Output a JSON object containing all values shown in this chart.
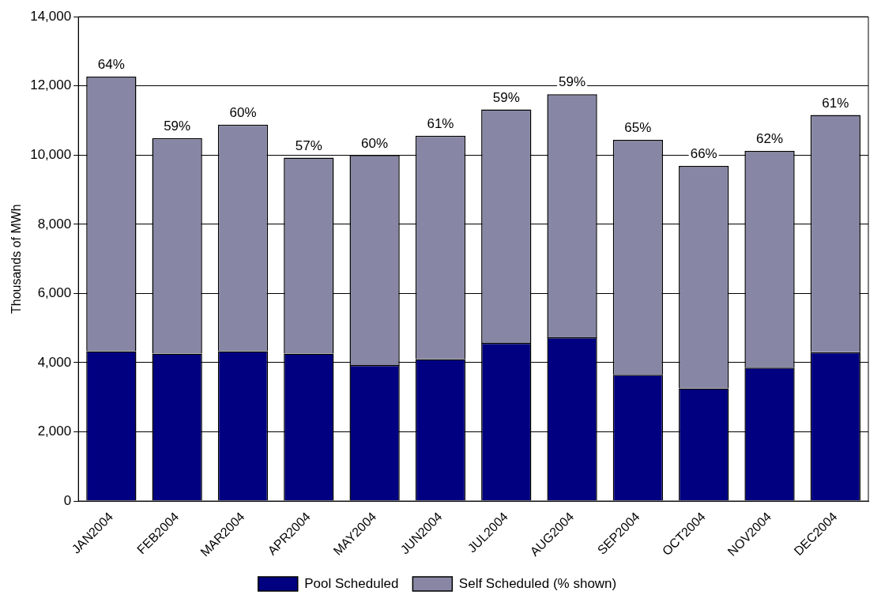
{
  "chart_data": {
    "type": "bar",
    "stacked": true,
    "ylabel": "Thousands of MWh",
    "categories": [
      "JAN2004",
      "FEB2004",
      "MAR2004",
      "APR2004",
      "MAY2004",
      "JUN2004",
      "JUL2004",
      "AUG2004",
      "SEP2004",
      "OCT2004",
      "NOV2004",
      "DEC2004"
    ],
    "series": [
      {
        "name": "Pool Scheduled",
        "color": "#000080",
        "values": [
          4330,
          4260,
          4330,
          4260,
          3930,
          4100,
          4570,
          4730,
          3650,
          3260,
          3860,
          4300
        ]
      },
      {
        "name": "Self Scheduled (% shown)",
        "color": "#8787a5",
        "values": [
          7940,
          6230,
          6550,
          5670,
          6070,
          6460,
          6750,
          7030,
          6790,
          6430,
          6260,
          6860
        ]
      }
    ],
    "annotations": [
      {
        "text": "64%",
        "x": "JAN2004",
        "y": 12270
      },
      {
        "text": "59%",
        "x": "FEB2004",
        "y": 10490
      },
      {
        "text": "60%",
        "x": "MAR2004",
        "y": 10880
      },
      {
        "text": "57%",
        "x": "APR2004",
        "y": 9930
      },
      {
        "text": "60%",
        "x": "MAY2004",
        "y": 10000
      },
      {
        "text": "61%",
        "x": "JUN2004",
        "y": 10560
      },
      {
        "text": "59%",
        "x": "JUL2004",
        "y": 11320
      },
      {
        "text": "59%",
        "x": "AUG2004",
        "y": 11760
      },
      {
        "text": "65%",
        "x": "SEP2004",
        "y": 10440
      },
      {
        "text": "66%",
        "x": "OCT2004",
        "y": 9690
      },
      {
        "text": "62%",
        "x": "NOV2004",
        "y": 10120
      },
      {
        "text": "61%",
        "x": "DEC2004",
        "y": 11160
      }
    ],
    "ylim": [
      0,
      14000
    ],
    "yticks": [
      0,
      {
        "value": 2000,
        "label": "2,000"
      },
      {
        "value": 4000,
        "label": "4,000"
      },
      {
        "value": 6000,
        "label": "6,000"
      },
      {
        "value": 8000,
        "label": "8,000"
      },
      {
        "value": 10000,
        "label": "10,000"
      },
      {
        "value": 12000,
        "label": "12,000"
      },
      {
        "value": 14000,
        "label": "14,000"
      }
    ],
    "grid": "y",
    "legend": "bottom"
  }
}
